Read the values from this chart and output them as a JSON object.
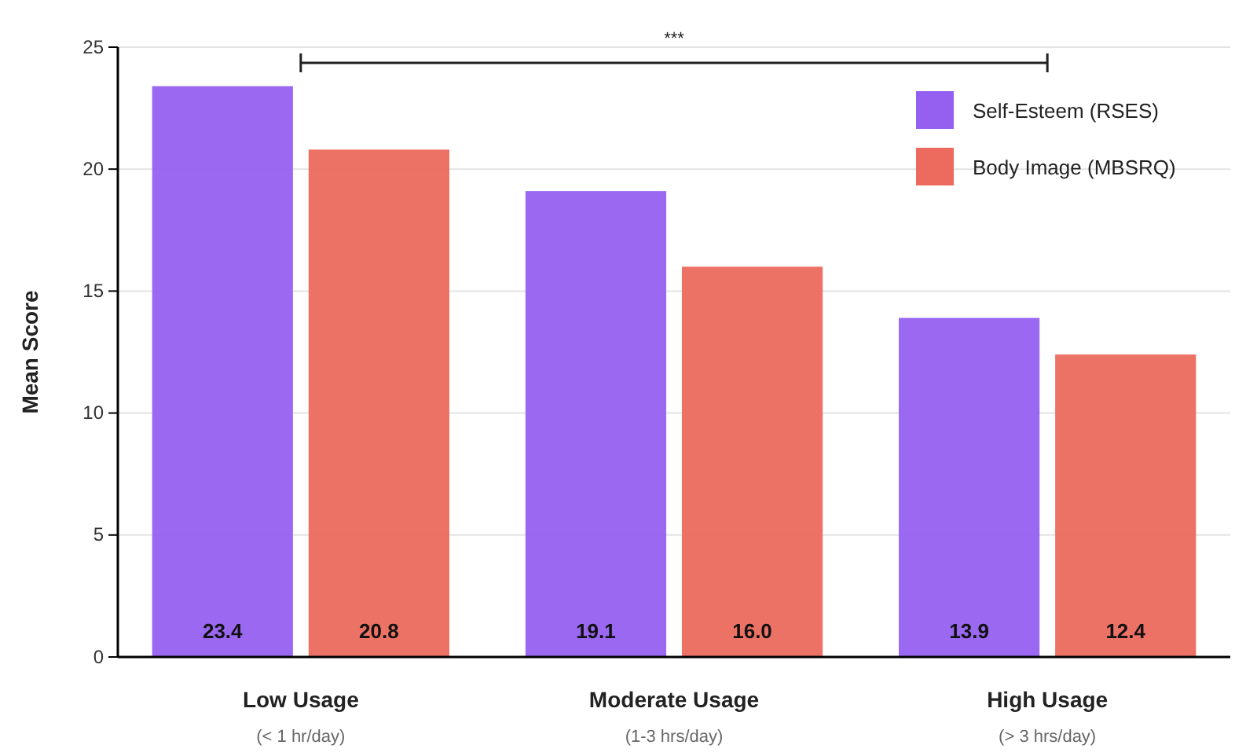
{
  "chart_data": {
    "type": "bar",
    "ylabel": "Mean Score",
    "categories": [
      "Low Usage\n(< 1 hr/day)",
      "Moderate Usage\n(1-3 hrs/day)",
      "High Usage\n(> 3 hrs/day)"
    ],
    "series": [
      {
        "name": "Self-Esteem (RSES)",
        "color": "#9560f0",
        "values": [
          23.4,
          19.1,
          13.9
        ],
        "value_labels": [
          "23.4",
          "19.1",
          "13.9"
        ]
      },
      {
        "name": "Body Image (MBSRQ)",
        "color": "#ec6a5e",
        "values": [
          20.8,
          16.0,
          12.4
        ],
        "value_labels": [
          "20.8",
          "16.0",
          "12.4"
        ]
      }
    ],
    "ylim": [
      0,
      25
    ],
    "yticks": [
      0,
      5,
      10,
      15,
      20,
      25
    ],
    "grid": "y",
    "legend": "top right",
    "annotations": [
      "***"
    ]
  }
}
